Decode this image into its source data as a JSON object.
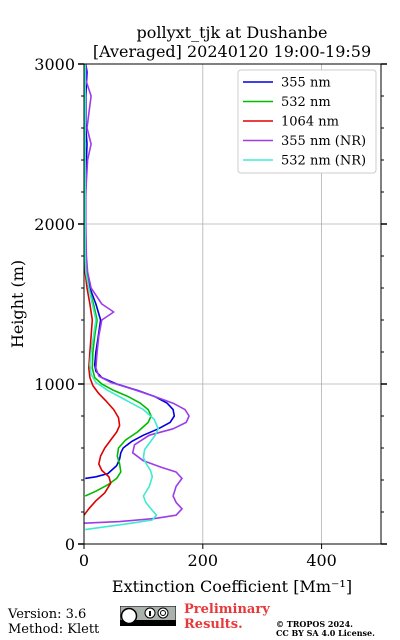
{
  "chart_data": {
    "type": "line",
    "title": "pollyxt_tjk at Dushanbe",
    "subtitle": "[Averaged] 20240120 19:00-19:59",
    "xlabel": "Extinction Coefficient [Mm⁻¹]",
    "ylabel": "Height (m)",
    "xlim": [
      0,
      500
    ],
    "ylim": [
      0,
      3000
    ],
    "x_ticks": [
      "0",
      "200",
      "400"
    ],
    "y_ticks": [
      "0",
      "1000",
      "2000",
      "3000"
    ],
    "grid": true,
    "legend_position": "top-right",
    "series": [
      {
        "name": "355 nm",
        "color": "#0000dd",
        "points": [
          [
            2,
            410
          ],
          [
            20,
            420
          ],
          [
            40,
            440
          ],
          [
            55,
            490
          ],
          [
            60,
            530
          ],
          [
            62,
            570
          ],
          [
            66,
            600
          ],
          [
            80,
            640
          ],
          [
            100,
            680
          ],
          [
            125,
            720
          ],
          [
            145,
            760
          ],
          [
            152,
            800
          ],
          [
            150,
            840
          ],
          [
            140,
            880
          ],
          [
            120,
            920
          ],
          [
            90,
            960
          ],
          [
            55,
            1000
          ],
          [
            30,
            1040
          ],
          [
            20,
            1080
          ],
          [
            18,
            1120
          ],
          [
            20,
            1200
          ],
          [
            24,
            1300
          ],
          [
            28,
            1400
          ],
          [
            20,
            1500
          ],
          [
            10,
            1600
          ],
          [
            5,
            1700
          ],
          [
            3,
            1800
          ],
          [
            2,
            2000
          ],
          [
            3,
            2200
          ],
          [
            4,
            2400
          ],
          [
            5,
            2500
          ],
          [
            3,
            2600
          ],
          [
            3,
            2800
          ],
          [
            5,
            2950
          ],
          [
            3,
            3000
          ]
        ]
      },
      {
        "name": "532 nm",
        "color": "#00bb00",
        "points": [
          [
            2,
            300
          ],
          [
            20,
            330
          ],
          [
            40,
            370
          ],
          [
            55,
            410
          ],
          [
            62,
            450
          ],
          [
            60,
            500
          ],
          [
            56,
            550
          ],
          [
            58,
            600
          ],
          [
            70,
            650
          ],
          [
            90,
            700
          ],
          [
            108,
            760
          ],
          [
            113,
            800
          ],
          [
            108,
            840
          ],
          [
            95,
            880
          ],
          [
            75,
            920
          ],
          [
            50,
            960
          ],
          [
            30,
            1000
          ],
          [
            18,
            1040
          ],
          [
            14,
            1100
          ],
          [
            15,
            1200
          ],
          [
            18,
            1300
          ],
          [
            22,
            1400
          ],
          [
            16,
            1500
          ],
          [
            8,
            1600
          ],
          [
            4,
            1700
          ],
          [
            2,
            1800
          ],
          [
            2,
            2000
          ],
          [
            2,
            2400
          ],
          [
            2,
            2800
          ],
          [
            2,
            3000
          ]
        ]
      },
      {
        "name": "1064 nm",
        "color": "#dd0000",
        "points": [
          [
            0,
            180
          ],
          [
            8,
            220
          ],
          [
            20,
            270
          ],
          [
            35,
            320
          ],
          [
            45,
            380
          ],
          [
            42,
            420
          ],
          [
            30,
            460
          ],
          [
            25,
            500
          ],
          [
            28,
            550
          ],
          [
            35,
            600
          ],
          [
            45,
            650
          ],
          [
            55,
            700
          ],
          [
            60,
            740
          ],
          [
            58,
            790
          ],
          [
            50,
            840
          ],
          [
            38,
            890
          ],
          [
            25,
            940
          ],
          [
            15,
            990
          ],
          [
            10,
            1040
          ],
          [
            8,
            1100
          ],
          [
            10,
            1200
          ],
          [
            12,
            1300
          ],
          [
            14,
            1400
          ],
          [
            10,
            1500
          ],
          [
            5,
            1600
          ],
          [
            2,
            1700
          ],
          [
            1,
            1800
          ],
          [
            1,
            2200
          ],
          [
            1,
            3000
          ]
        ]
      },
      {
        "name": "355 nm (NR)",
        "color": "#9b3de8",
        "points": [
          [
            0,
            130
          ],
          [
            60,
            140
          ],
          [
            120,
            160
          ],
          [
            155,
            180
          ],
          [
            165,
            220
          ],
          [
            155,
            260
          ],
          [
            150,
            300
          ],
          [
            155,
            360
          ],
          [
            165,
            410
          ],
          [
            155,
            450
          ],
          [
            130,
            480
          ],
          [
            100,
            520
          ],
          [
            82,
            570
          ],
          [
            85,
            620
          ],
          [
            110,
            680
          ],
          [
            150,
            720
          ],
          [
            172,
            760
          ],
          [
            177,
            800
          ],
          [
            170,
            840
          ],
          [
            150,
            880
          ],
          [
            120,
            920
          ],
          [
            80,
            970
          ],
          [
            45,
            1010
          ],
          [
            25,
            1050
          ],
          [
            20,
            1100
          ],
          [
            22,
            1200
          ],
          [
            25,
            1300
          ],
          [
            30,
            1400
          ],
          [
            50,
            1450
          ],
          [
            30,
            1500
          ],
          [
            12,
            1600
          ],
          [
            6,
            1700
          ],
          [
            4,
            1800
          ],
          [
            3,
            2000
          ],
          [
            3,
            2200
          ],
          [
            6,
            2400
          ],
          [
            12,
            2500
          ],
          [
            5,
            2600
          ],
          [
            12,
            2800
          ],
          [
            3,
            2900
          ],
          [
            3,
            3000
          ]
        ]
      },
      {
        "name": "532 nm (NR)",
        "color": "#40ead0",
        "points": [
          [
            2,
            90
          ],
          [
            40,
            110
          ],
          [
            80,
            130
          ],
          [
            115,
            150
          ],
          [
            122,
            180
          ],
          [
            115,
            210
          ],
          [
            104,
            260
          ],
          [
            100,
            300
          ],
          [
            110,
            360
          ],
          [
            115,
            420
          ],
          [
            112,
            460
          ],
          [
            105,
            500
          ],
          [
            100,
            540
          ],
          [
            102,
            590
          ],
          [
            112,
            640
          ],
          [
            120,
            680
          ],
          [
            125,
            720
          ],
          [
            118,
            780
          ],
          [
            100,
            840
          ],
          [
            70,
            900
          ],
          [
            40,
            960
          ],
          [
            20,
            1010
          ],
          [
            12,
            1060
          ],
          [
            10,
            1120
          ],
          [
            12,
            1200
          ],
          [
            16,
            1300
          ],
          [
            20,
            1400
          ],
          [
            14,
            1500
          ],
          [
            8,
            1600
          ],
          [
            3,
            1700
          ],
          [
            2,
            1800
          ],
          [
            2,
            2000
          ],
          [
            2,
            2400
          ],
          [
            2,
            2800
          ],
          [
            2,
            3000
          ]
        ]
      }
    ]
  },
  "footer": {
    "version": "Version: 3.6",
    "method": "Method: Klett",
    "preliminary_line1": "Preliminary",
    "preliminary_line2": "Results.",
    "copyright_line1": "© TROPOS 2024.",
    "copyright_line2": "CC BY SA 4.0 License.",
    "license_badge": "cc-by-sa-icon"
  }
}
